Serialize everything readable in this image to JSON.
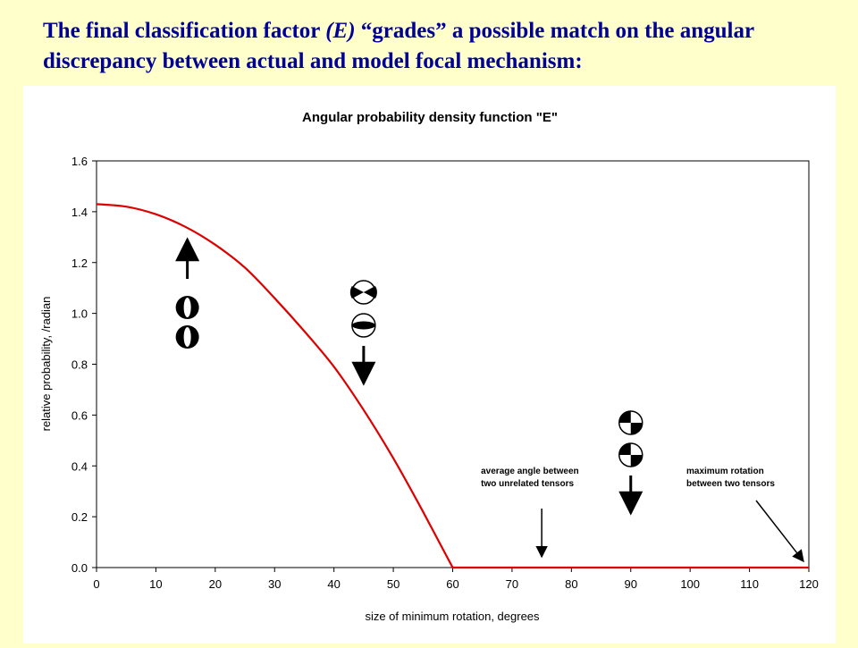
{
  "slide": {
    "title_part1": "The final classification factor ",
    "title_emph": "(E)",
    "title_part2": " “grades” a possible match on the angular discrepancy between actual and model focal mechanism:"
  },
  "colors": {
    "slide_background": "#ffffcc",
    "title_text": "#000099",
    "curve": "#dd0000"
  },
  "chart_data": {
    "type": "line",
    "title": "Angular probability density function \"E\"",
    "xlabel": "size of minimum rotation, degrees",
    "ylabel": "relative probability, /radian",
    "xlim": [
      0,
      120
    ],
    "ylim": [
      0,
      1.6
    ],
    "xticks": [
      "0",
      "10",
      "20",
      "30",
      "40",
      "50",
      "60",
      "70",
      "80",
      "90",
      "100",
      "110",
      "120"
    ],
    "yticks": [
      "0.0",
      "0.2",
      "0.4",
      "0.6",
      "0.8",
      "1.0",
      "1.2",
      "1.4",
      "1.6"
    ],
    "grid": false,
    "legend": "none",
    "series": [
      {
        "x": [
          0,
          5,
          10,
          15,
          20,
          25,
          30,
          35,
          40,
          45,
          50,
          55,
          60,
          70,
          80,
          90,
          100,
          110,
          120
        ],
        "y": [
          1.43,
          1.42,
          1.39,
          1.34,
          1.27,
          1.18,
          1.06,
          0.93,
          0.79,
          0.62,
          0.43,
          0.22,
          0.0,
          0.0,
          0.0,
          0.0,
          0.0,
          0.0,
          0.0
        ]
      }
    ],
    "annotations": [
      {
        "text_lines": [
          "average angle between",
          "two unrelated tensors"
        ],
        "x": 75
      },
      {
        "text_lines": [
          "maximum rotation",
          "between two tensors"
        ],
        "x": 120
      }
    ],
    "focal_mechanism_icons": [
      {
        "x": 15,
        "symbols": [
          "vertical-lens-beachball",
          "vertical-lens-beachball"
        ],
        "arrow": "up"
      },
      {
        "x": 45,
        "symbols": [
          "bowtie-beachball",
          "horizontal-lens-beachball"
        ],
        "arrow": "down"
      },
      {
        "x": 90,
        "symbols": [
          "quadrant-beachball",
          "quadrant-beachball"
        ],
        "arrow": "down"
      }
    ]
  }
}
